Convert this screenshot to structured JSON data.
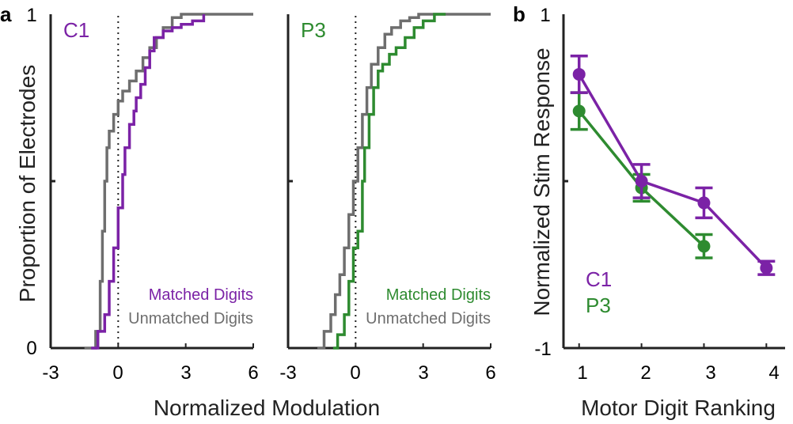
{
  "panel_labels": [
    "a",
    "b"
  ],
  "chart_data": [
    {
      "type": "line",
      "subtitle": "C1",
      "title": "",
      "xlabel": "Normalized Modulation",
      "ylabel": "Proportion of Electrodes",
      "xlim": [
        -3,
        6
      ],
      "ylim": [
        0,
        1
      ],
      "xticks": [
        "-3",
        "0",
        "3",
        "6"
      ],
      "yticks": [
        "0",
        "1"
      ],
      "reference_line_x": 0,
      "series": [
        {
          "name": "Matched Digits",
          "color": "#7B22A6",
          "x": [
            -1.2,
            -0.9,
            -0.6,
            -0.4,
            -0.2,
            0.0,
            0.2,
            0.3,
            0.5,
            0.7,
            0.8,
            1.0,
            1.2,
            1.4,
            1.6,
            1.8,
            2.0,
            2.4,
            2.8,
            3.3,
            3.8
          ],
          "y": [
            0.0,
            0.05,
            0.1,
            0.2,
            0.3,
            0.42,
            0.52,
            0.6,
            0.67,
            0.71,
            0.75,
            0.79,
            0.84,
            0.89,
            0.93,
            0.93,
            0.95,
            0.96,
            0.97,
            0.98,
            1.0
          ]
        },
        {
          "name": "Unmatched Digits",
          "color": "#6E6E6E",
          "x": [
            -1.5,
            -1.2,
            -1.0,
            -0.8,
            -0.7,
            -0.6,
            -0.5,
            -0.4,
            -0.2,
            0.0,
            0.2,
            0.5,
            0.8,
            1.1,
            1.4,
            1.7,
            2.0,
            2.4,
            2.8,
            3.2,
            4.0,
            6.0
          ],
          "y": [
            0.0,
            0.0,
            0.05,
            0.2,
            0.35,
            0.5,
            0.6,
            0.65,
            0.7,
            0.74,
            0.77,
            0.8,
            0.83,
            0.87,
            0.9,
            0.93,
            0.96,
            0.99,
            1.0,
            1.0,
            1.0,
            1.0
          ]
        }
      ]
    },
    {
      "type": "line",
      "subtitle": "P3",
      "title": "",
      "xlabel": "Normalized Modulation",
      "ylabel": "",
      "xlim": [
        -3,
        6
      ],
      "ylim": [
        0,
        1
      ],
      "xticks": [
        "-3",
        "0",
        "3",
        "6"
      ],
      "reference_line_x": 0,
      "series": [
        {
          "name": "Matched Digits",
          "color": "#2E8B30",
          "x": [
            -1.0,
            -0.8,
            -0.5,
            -0.3,
            -0.1,
            0.1,
            0.3,
            0.4,
            0.6,
            0.8,
            1.0,
            1.2,
            1.5,
            1.8,
            2.2,
            2.6,
            3.0,
            3.5,
            4.0
          ],
          "y": [
            0.0,
            0.04,
            0.1,
            0.2,
            0.3,
            0.35,
            0.5,
            0.6,
            0.7,
            0.78,
            0.83,
            0.85,
            0.88,
            0.9,
            0.93,
            0.96,
            0.98,
            1.0,
            1.0
          ]
        },
        {
          "name": "Unmatched Digits",
          "color": "#6E6E6E",
          "x": [
            -1.7,
            -1.4,
            -1.1,
            -0.9,
            -0.7,
            -0.5,
            -0.3,
            -0.1,
            0.1,
            0.3,
            0.5,
            0.7,
            1.0,
            1.3,
            1.6,
            2.0,
            2.4,
            2.8,
            3.2,
            4.0,
            6.0
          ],
          "y": [
            0.0,
            0.05,
            0.1,
            0.16,
            0.22,
            0.3,
            0.4,
            0.5,
            0.6,
            0.7,
            0.78,
            0.85,
            0.9,
            0.94,
            0.96,
            0.98,
            0.99,
            1.0,
            1.0,
            1.0,
            1.0
          ]
        }
      ]
    },
    {
      "type": "line",
      "title": "",
      "xlabel": "Motor Digit Ranking",
      "ylabel": "Normalized Stim Response",
      "xlim": [
        0.75,
        4.3
      ],
      "ylim": [
        -1,
        1
      ],
      "categories": [
        "1",
        "2",
        "3",
        "4"
      ],
      "yticks": [
        "-1",
        "1"
      ],
      "series": [
        {
          "name": "C1",
          "color": "#7B22A6",
          "x": [
            1,
            2,
            3,
            4
          ],
          "y": [
            0.64,
            0.0,
            -0.13,
            -0.52
          ],
          "err": [
            0.11,
            0.1,
            0.09,
            0.04
          ]
        },
        {
          "name": "P3",
          "color": "#2E8B30",
          "x": [
            1,
            2,
            3
          ],
          "y": [
            0.42,
            -0.04,
            -0.39
          ],
          "err": [
            0.11,
            0.08,
            0.07
          ]
        }
      ]
    }
  ]
}
